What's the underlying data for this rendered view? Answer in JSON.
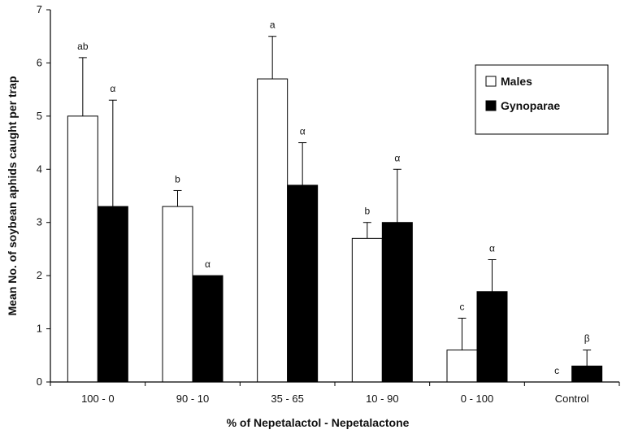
{
  "chart_data": {
    "type": "bar",
    "title": "",
    "xlabel": "% of Nepetalactol - Nepetalactone",
    "ylabel": "Mean No. of soybean aphids caught per trap",
    "ylim": [
      0,
      7
    ],
    "yticks": [
      0,
      1,
      2,
      3,
      4,
      5,
      6,
      7
    ],
    "categories": [
      "100 - 0",
      "90 - 10",
      "35 - 65",
      "10 - 90",
      "0 - 100",
      "Control"
    ],
    "series": [
      {
        "name": "Males",
        "color": "#ffffff",
        "values": [
          5.0,
          3.3,
          5.7,
          2.7,
          0.6,
          0.0
        ],
        "errors": [
          1.1,
          0.3,
          0.8,
          0.3,
          0.6,
          0.0
        ],
        "letters": [
          "ab",
          "b",
          "a",
          "b",
          "c",
          "c"
        ]
      },
      {
        "name": "Gynoparae",
        "color": "#000000",
        "values": [
          3.3,
          2.0,
          3.7,
          3.0,
          1.7,
          0.3
        ],
        "errors": [
          2.0,
          0.0,
          0.8,
          1.0,
          0.6,
          0.3
        ],
        "letters": [
          "α",
          "α",
          "α",
          "α",
          "α",
          "β"
        ]
      }
    ],
    "grid": false,
    "legend_position": "top-right"
  }
}
